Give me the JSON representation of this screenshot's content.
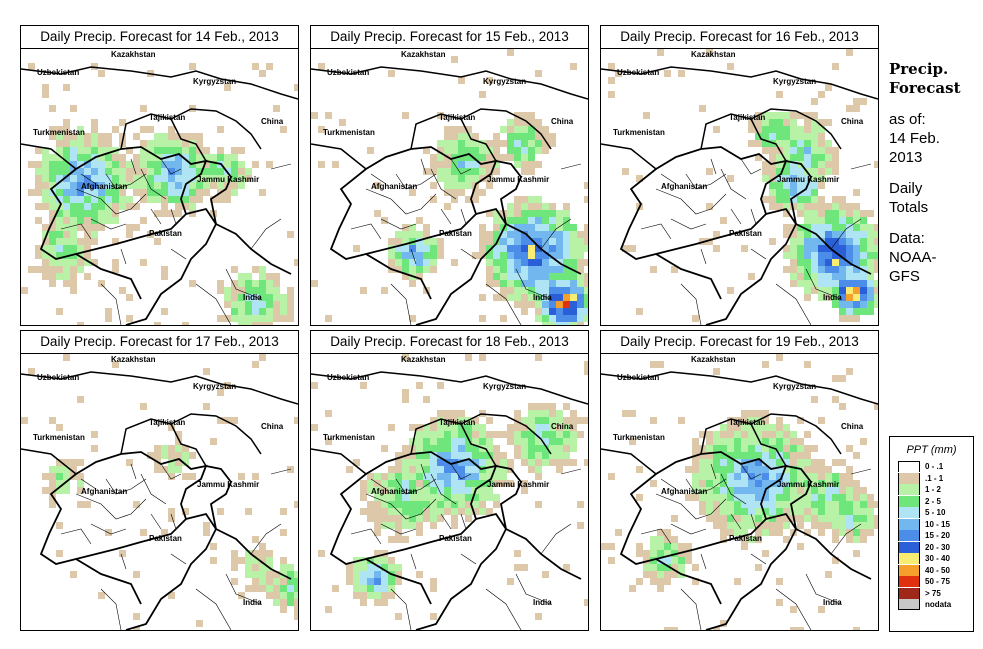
{
  "panels": [
    {
      "title": "Daily Precip. Forecast for  14 Feb., 2013"
    },
    {
      "title": "Daily Precip. Forecast for  15 Feb., 2013"
    },
    {
      "title": "Daily Precip. Forecast for  16 Feb., 2013"
    },
    {
      "title": "Daily Precip. Forecast for  17 Feb., 2013"
    },
    {
      "title": "Daily Precip. Forecast for  18 Feb., 2013"
    },
    {
      "title": "Daily Precip. Forecast for  19 Feb., 2013"
    }
  ],
  "map_labels": {
    "kazakhstan": "Kazakhstan",
    "uzbekistan": "Uzbekistan",
    "kyrgyzstan": "Kyrgyzstan",
    "tajikistan": "Tajikistan",
    "turkmenistan": "Turkmenistan",
    "china": "China",
    "afghanistan": "Afghanistan",
    "jammu_kashmir": "Jammu Kashmir",
    "pakistan": "Pakistan",
    "india": "India"
  },
  "sidebar": {
    "heading_1": "Precip.",
    "heading_2": "Forecast",
    "asof_1": "as of:",
    "asof_2": "14 Feb.",
    "asof_3": "2013",
    "daily_1": "Daily",
    "daily_2": "Totals",
    "data_1": "Data:",
    "data_2": "NOAA-",
    "data_3": "GFS"
  },
  "legend": {
    "title": "PPT (mm)",
    "items": [
      {
        "range": "0 - .1",
        "color": "#ffffff"
      },
      {
        "range": ".1 - 1",
        "color": "#ddc9a9"
      },
      {
        "range": "1 - 2",
        "color": "#b7f2a6"
      },
      {
        "range": "2 - 5",
        "color": "#6fe67c"
      },
      {
        "range": "5 - 10",
        "color": "#aee4f4"
      },
      {
        "range": "10 - 15",
        "color": "#72b8ee"
      },
      {
        "range": "15 - 20",
        "color": "#4b8de8"
      },
      {
        "range": "20 - 30",
        "color": "#2a5fd8"
      },
      {
        "range": "30 - 40",
        "color": "#f9ec72"
      },
      {
        "range": "40 - 50",
        "color": "#f5a02c"
      },
      {
        "range": "50 - 75",
        "color": "#e0300f"
      },
      {
        "range": "> 75",
        "color": "#a0281a"
      },
      {
        "range": "nodata",
        "color": "#c8c8c8"
      }
    ]
  }
}
